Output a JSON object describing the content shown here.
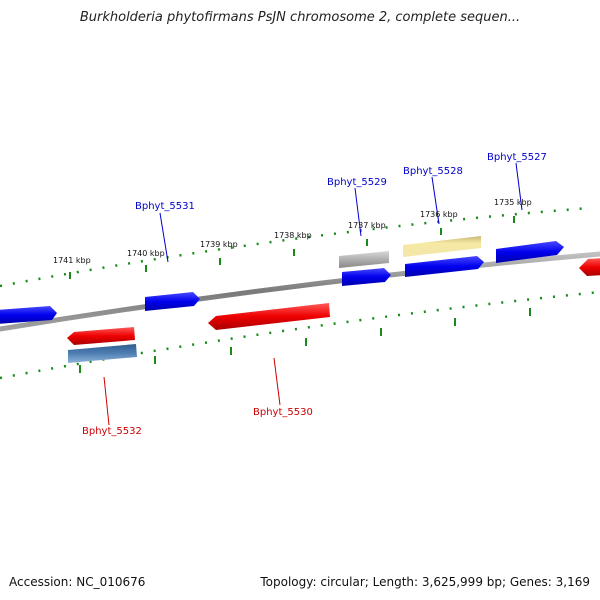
{
  "header": {
    "title": "Burkholderia phytofirmans PsJN chromosome 2, complete sequen..."
  },
  "footer": {
    "accession": "Accession: NC_010676",
    "summary": "Topology: circular; Length: 3,625,999 bp; Genes: 3,169"
  },
  "colors": {
    "backbone": "#888888",
    "tick": "#1a8a1a",
    "forward_label": "#0000cc",
    "reverse_label": "#cc0000",
    "forward_gene": "#0000ee",
    "reverse_gene": "#ee0000",
    "gray_gene": "#aaaaaa",
    "khaki_gene": "#f3e59a",
    "steel_gene": "#4f7fb3"
  },
  "ruler": {
    "labels": [
      "1741 kbp",
      "1740 kbp",
      "1739 kbp",
      "1738 kbp",
      "1737 kbp",
      "1736 kbp",
      "1735 kbp"
    ]
  },
  "genes": [
    {
      "name": "Bphyt_5532",
      "strand": "reverse",
      "color": "steel",
      "icon": "gene-arrow-icon"
    },
    {
      "name": "Bphyt_5531",
      "strand": "forward",
      "color": "blue",
      "icon": "gene-arrow-icon"
    },
    {
      "name": "Bphyt_5530",
      "strand": "reverse",
      "color": "red",
      "icon": "gene-arrow-icon"
    },
    {
      "name": "Bphyt_5529",
      "strand": "forward",
      "color": "gray",
      "icon": "gene-arrow-icon"
    },
    {
      "name": "Bphyt_5528",
      "strand": "forward",
      "color": "khaki",
      "icon": "gene-arrow-icon"
    },
    {
      "name": "Bphyt_5527",
      "strand": "forward",
      "color": "blue",
      "icon": "gene-arrow-icon"
    }
  ]
}
